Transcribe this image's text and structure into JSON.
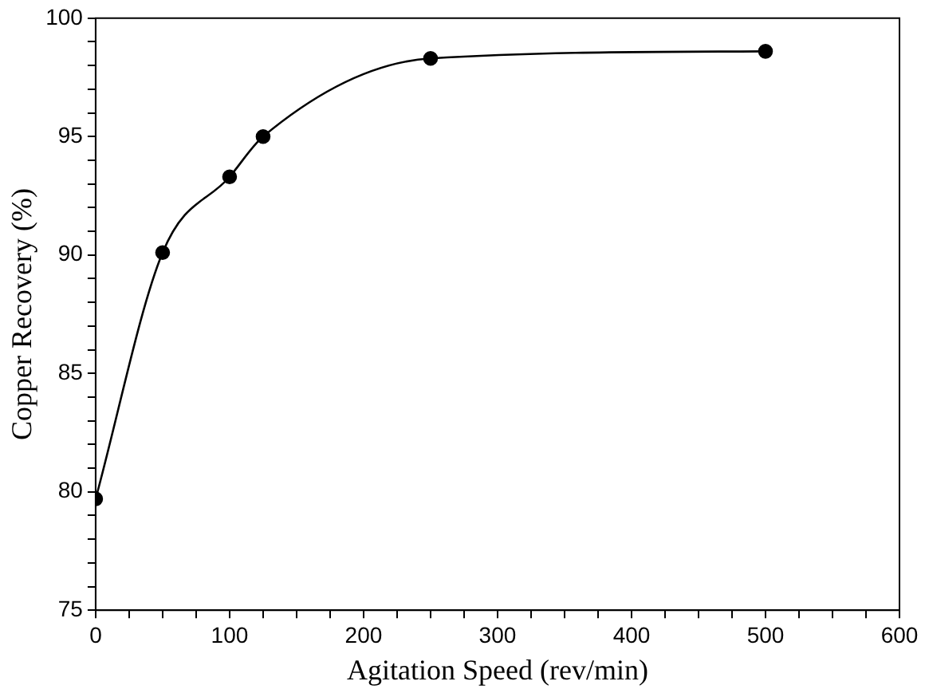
{
  "chart_data": {
    "type": "line",
    "xlabel": "Agitation Speed (rev/min)",
    "ylabel": "Copper Recovery (%)",
    "x": [
      0,
      50,
      100,
      125,
      250,
      500
    ],
    "series": [
      {
        "color": "#000000",
        "values": [
          79.7,
          90.1,
          93.3,
          95.0,
          98.3,
          98.6
        ]
      }
    ],
    "xlim": [
      0,
      600
    ],
    "xticks": [
      0,
      {
        "value": 25,
        "label": null
      },
      {
        "value": 50,
        "label": null
      },
      {
        "value": 75,
        "label": null
      },
      100,
      {
        "value": 125,
        "label": null
      },
      {
        "value": 150,
        "label": null
      },
      {
        "value": 175,
        "label": null
      },
      200,
      {
        "value": 225,
        "label": null
      },
      {
        "value": 250,
        "label": null
      },
      {
        "value": 275,
        "label": null
      },
      300,
      {
        "value": 325,
        "label": null
      },
      {
        "value": 350,
        "label": null
      },
      {
        "value": 375,
        "label": null
      },
      400,
      {
        "value": 425,
        "label": null
      },
      {
        "value": 450,
        "label": null
      },
      {
        "value": 475,
        "label": null
      },
      500,
      {
        "value": 525,
        "label": null
      },
      {
        "value": 550,
        "label": null
      },
      {
        "value": 575,
        "label": null
      },
      600
    ],
    "ylim": [
      75,
      100
    ],
    "yticks": [
      75,
      {
        "value": 76,
        "label": null
      },
      {
        "value": 77,
        "label": null
      },
      {
        "value": 78,
        "label": null
      },
      {
        "value": 79,
        "label": null
      },
      80,
      {
        "value": 81,
        "label": null
      },
      {
        "value": 82,
        "label": null
      },
      {
        "value": 83,
        "label": null
      },
      {
        "value": 84,
        "label": null
      },
      85,
      {
        "value": 86,
        "label": null
      },
      {
        "value": 87,
        "label": null
      },
      {
        "value": 88,
        "label": null
      },
      {
        "value": 89,
        "label": null
      },
      90,
      {
        "value": 91,
        "label": null
      },
      {
        "value": 92,
        "label": null
      },
      {
        "value": 93,
        "label": null
      },
      {
        "value": 94,
        "label": null
      },
      95,
      {
        "value": 96,
        "label": null
      },
      {
        "value": 97,
        "label": null
      },
      {
        "value": 98,
        "label": null
      },
      {
        "value": 99,
        "label": null
      },
      100
    ],
    "grid": false,
    "legend": false,
    "marker": "circle",
    "line_style": "solid"
  }
}
